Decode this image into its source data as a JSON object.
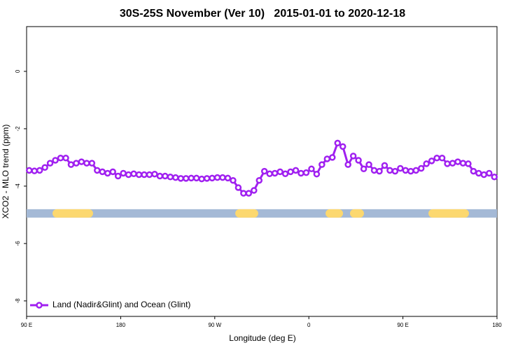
{
  "chart_data": {
    "type": "line",
    "title": "30S-25S November (Ver 10)   2015-01-01 to 2020-12-18",
    "x_label": "Longitude (deg E)",
    "y_label": "XCO2 - MLO trend (ppm)",
    "xlim": [
      90,
      540
    ],
    "ylim": [
      -8.54,
      1.56
    ],
    "xticks": [
      {
        "value": 90,
        "label": "90 E"
      },
      180,
      {
        "value": 270,
        "label": "90 W"
      },
      {
        "value": 360,
        "label": "0"
      },
      {
        "value": 450,
        "label": "90 E"
      },
      {
        "value": 540,
        "label": "180"
      }
    ],
    "yticks": [
      0,
      -2,
      -4,
      -6,
      -8
    ],
    "legend": "bottom-left",
    "x": [
      92.5,
      97.5,
      102.5,
      107.5,
      112.5,
      117.5,
      122.5,
      127.5,
      132.5,
      137.5,
      142.5,
      147.5,
      152.5,
      157.5,
      162.5,
      167.5,
      172.5,
      177.5,
      182.5,
      187.5,
      192.5,
      197.5,
      202.5,
      207.5,
      212.5,
      217.5,
      222.5,
      227.5,
      232.5,
      237.5,
      242.5,
      247.5,
      252.5,
      257.5,
      262.5,
      267.5,
      272.5,
      277.5,
      282.5,
      287.5,
      292.5,
      297.5,
      302.5,
      307.5,
      312.5,
      317.5,
      322.5,
      327.5,
      332.5,
      337.5,
      342.5,
      347.5,
      352.5,
      357.5,
      362.5,
      367.5,
      372.5,
      377.5,
      382.5,
      387.5,
      392.5,
      397.5,
      402.5,
      407.5,
      412.5,
      417.5,
      422.5,
      427.5,
      432.5,
      437.5,
      442.5,
      447.5,
      452.5,
      457.5,
      462.5,
      467.5,
      472.5,
      477.5,
      482.5,
      487.5,
      492.5,
      497.5,
      502.5,
      507.5,
      512.5,
      517.5,
      522.5,
      527.5,
      532.5,
      537.5
    ],
    "series": [
      {
        "name": "Land (Nadir&Glint) and Ocean (Glint)",
        "color": "#a020f0",
        "values": [
          -3.45,
          -3.47,
          -3.45,
          -3.35,
          -3.2,
          -3.1,
          -3.02,
          -3.02,
          -3.25,
          -3.2,
          -3.15,
          -3.2,
          -3.2,
          -3.45,
          -3.5,
          -3.55,
          -3.5,
          -3.65,
          -3.55,
          -3.6,
          -3.57,
          -3.6,
          -3.6,
          -3.6,
          -3.58,
          -3.65,
          -3.65,
          -3.68,
          -3.7,
          -3.73,
          -3.73,
          -3.72,
          -3.72,
          -3.75,
          -3.73,
          -3.72,
          -3.7,
          -3.7,
          -3.72,
          -3.8,
          -4.05,
          -4.25,
          -4.25,
          -4.15,
          -3.8,
          -3.48,
          -3.57,
          -3.55,
          -3.5,
          -3.57,
          -3.5,
          -3.45,
          -3.55,
          -3.53,
          -3.4,
          -3.58,
          -3.25,
          -3.05,
          -3.0,
          -2.5,
          -2.62,
          -3.25,
          -2.95,
          -3.1,
          -3.4,
          -3.25,
          -3.45,
          -3.48,
          -3.28,
          -3.45,
          -3.48,
          -3.38,
          -3.45,
          -3.48,
          -3.45,
          -3.38,
          -3.22,
          -3.12,
          -3.02,
          -3.02,
          -3.22,
          -3.2,
          -3.15,
          -3.2,
          -3.22,
          -3.48,
          -3.55,
          -3.6,
          -3.55,
          -3.68
        ]
      }
    ],
    "surface_bar": {
      "y": -4.95,
      "ocean_color": "#a4b9d6",
      "land_color": "#fcd86f",
      "land": [
        [
          114.8,
          153.6
        ],
        [
          289.6,
          311.6
        ],
        [
          376,
          392.7
        ],
        [
          404.7,
          407.4
        ],
        [
          474.4,
          513.2
        ]
      ]
    }
  }
}
